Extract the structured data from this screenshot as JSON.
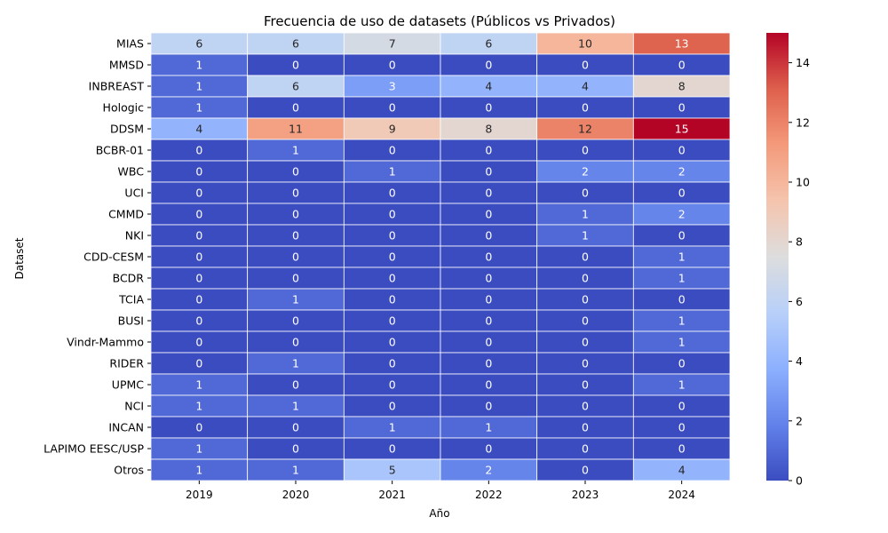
{
  "chart_data": {
    "type": "heatmap",
    "title": "Frecuencia de uso de datasets (Públicos vs Privados)",
    "xlabel": "Año",
    "ylabel": "Dataset",
    "x": [
      "2019",
      "2020",
      "2021",
      "2022",
      "2023",
      "2024"
    ],
    "y": [
      "MIAS",
      "MMSD",
      "INBREAST",
      "Hologic",
      "DDSM",
      "BCBR-01",
      "WBC",
      "UCI",
      "CMMD",
      "NKI",
      "CDD-CESM",
      "BCDR",
      "TCIA",
      "BUSI",
      "Vindr-Mammo",
      "RIDER",
      "UPMC",
      "NCI",
      "INCAN",
      "LAPIMO EESC/USP",
      "Otros"
    ],
    "values": [
      [
        6,
        6,
        7,
        6,
        10,
        13
      ],
      [
        1,
        0,
        0,
        0,
        0,
        0
      ],
      [
        1,
        6,
        3,
        4,
        4,
        8
      ],
      [
        1,
        0,
        0,
        0,
        0,
        0
      ],
      [
        4,
        11,
        9,
        8,
        12,
        15
      ],
      [
        0,
        1,
        0,
        0,
        0,
        0
      ],
      [
        0,
        0,
        1,
        0,
        2,
        2
      ],
      [
        0,
        0,
        0,
        0,
        0,
        0
      ],
      [
        0,
        0,
        0,
        0,
        1,
        2
      ],
      [
        0,
        0,
        0,
        0,
        1,
        0
      ],
      [
        0,
        0,
        0,
        0,
        0,
        1
      ],
      [
        0,
        0,
        0,
        0,
        0,
        1
      ],
      [
        0,
        1,
        0,
        0,
        0,
        0
      ],
      [
        0,
        0,
        0,
        0,
        0,
        1
      ],
      [
        0,
        0,
        0,
        0,
        0,
        1
      ],
      [
        0,
        1,
        0,
        0,
        0,
        0
      ],
      [
        1,
        0,
        0,
        0,
        0,
        1
      ],
      [
        1,
        1,
        0,
        0,
        0,
        0
      ],
      [
        0,
        0,
        1,
        1,
        0,
        0
      ],
      [
        1,
        0,
        0,
        0,
        0,
        0
      ],
      [
        1,
        1,
        5,
        2,
        0,
        4
      ]
    ],
    "vmin": 0,
    "vmax": 15,
    "colormap": "coolwarm",
    "colorbar_ticks": [
      "0",
      "2",
      "4",
      "6",
      "8",
      "10",
      "12",
      "14"
    ],
    "cell_border_color": "#ffffff",
    "legend": "colorbar-right"
  }
}
